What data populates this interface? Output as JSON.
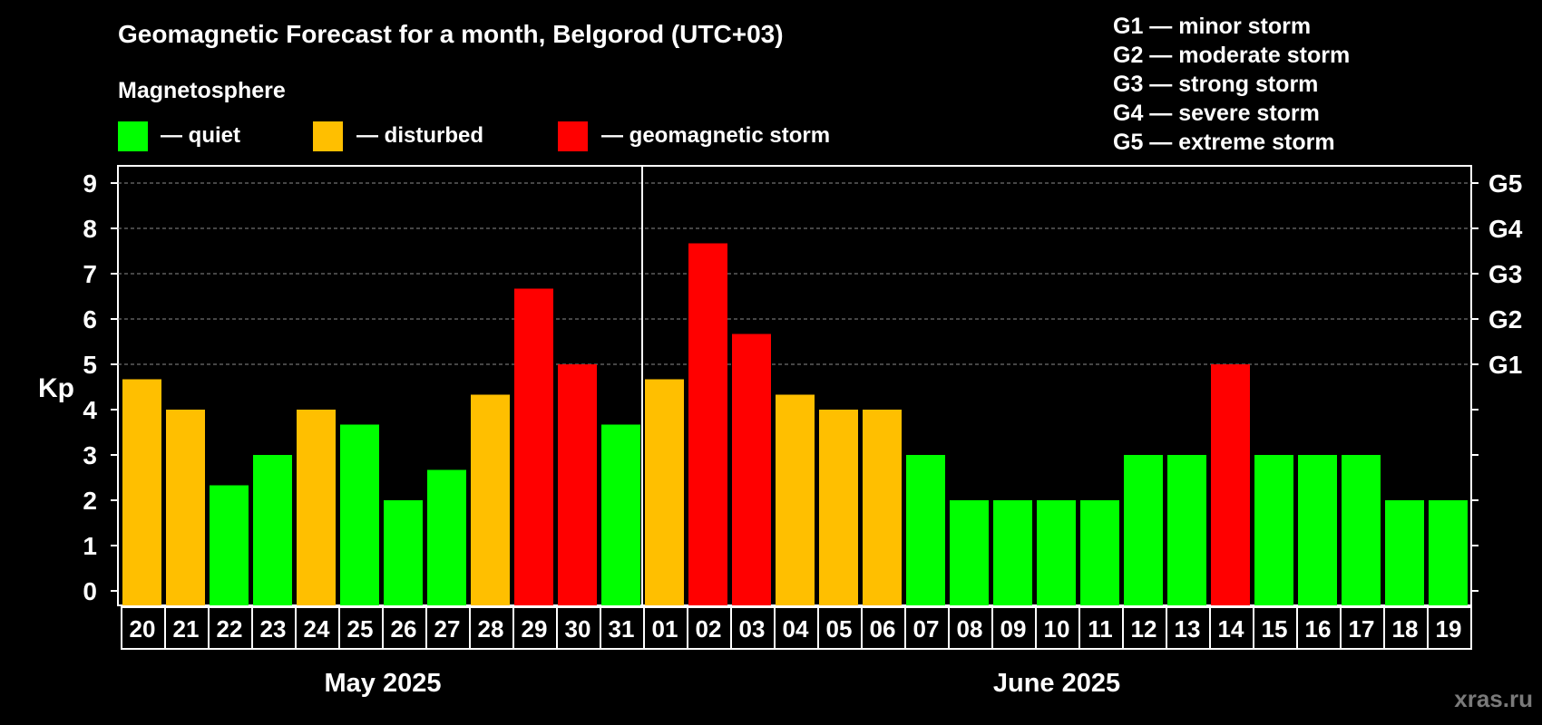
{
  "title": "Geomagnetic Forecast for a month, Belgorod (UTC+03)",
  "legend": {
    "heading": "Magnetosphere",
    "items": [
      {
        "label": "— quiet",
        "color": "#00ff00"
      },
      {
        "label": "— disturbed",
        "color": "#ffbf00"
      },
      {
        "label": "— geomagnetic storm",
        "color": "#ff0000"
      }
    ]
  },
  "g_scale": [
    "G1 — minor storm",
    "G2 — moderate storm",
    "G3 — strong storm",
    "G4 — severe storm",
    "G5 — extreme storm"
  ],
  "months": [
    "May 2025",
    "June 2025"
  ],
  "watermark": "xras.ru",
  "chart_data": {
    "type": "bar",
    "title": "Geomagnetic Forecast for a month, Belgorod (UTC+03)",
    "ylabel": "Kp",
    "ylim": [
      0,
      9
    ],
    "yticks": [
      "0",
      "1",
      "2",
      "3",
      "4",
      "5",
      "6",
      "7",
      "8",
      "9"
    ],
    "right_ticks": [
      {
        "value": 5,
        "label": "G1"
      },
      {
        "value": 6,
        "label": "G2"
      },
      {
        "value": 7,
        "label": "G3"
      },
      {
        "value": 8,
        "label": "G4"
      },
      {
        "value": 9,
        "label": "G5"
      }
    ],
    "grid_levels": [
      5,
      6,
      7,
      8,
      9
    ],
    "categories": [
      "20",
      "21",
      "22",
      "23",
      "24",
      "25",
      "26",
      "27",
      "28",
      "29",
      "30",
      "31",
      "01",
      "02",
      "03",
      "04",
      "05",
      "06",
      "07",
      "08",
      "09",
      "10",
      "11",
      "12",
      "13",
      "14",
      "15",
      "16",
      "17",
      "18",
      "19"
    ],
    "values": [
      4.67,
      4,
      2.33,
      3,
      4,
      3.67,
      2,
      2.67,
      4.33,
      6.67,
      5,
      3.67,
      4.67,
      7.67,
      5.67,
      4.33,
      4,
      4,
      3,
      2,
      2,
      2,
      2,
      3,
      3,
      5,
      3,
      3,
      3,
      2,
      2
    ],
    "status": [
      "disturbed",
      "disturbed",
      "quiet",
      "quiet",
      "disturbed",
      "quiet",
      "quiet",
      "quiet",
      "disturbed",
      "storm",
      "storm",
      "quiet",
      "disturbed",
      "storm",
      "storm",
      "disturbed",
      "disturbed",
      "disturbed",
      "quiet",
      "quiet",
      "quiet",
      "quiet",
      "quiet",
      "quiet",
      "quiet",
      "storm",
      "quiet",
      "quiet",
      "quiet",
      "quiet",
      "quiet"
    ],
    "status_colors": {
      "quiet": "#00ff00",
      "disturbed": "#ffbf00",
      "storm": "#ff0000"
    },
    "month_split_after_index": 11
  }
}
